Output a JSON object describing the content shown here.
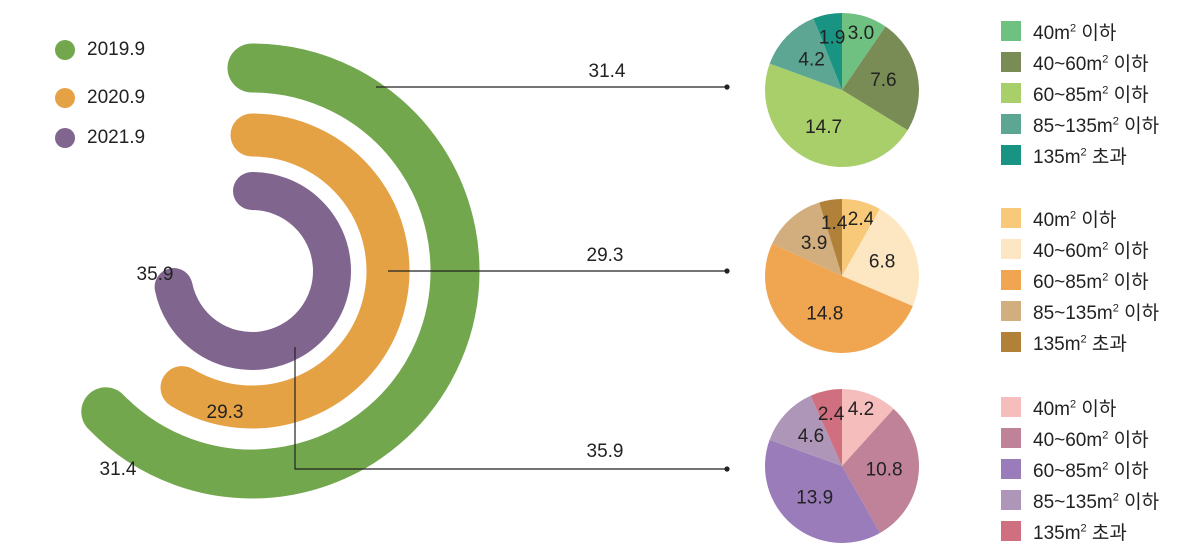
{
  "chart_data": [
    {
      "type": "radial-bar",
      "legend": [
        "2019.9",
        "2020.9",
        "2021.9"
      ],
      "colors": [
        "#72a74e",
        "#e5a245",
        "#80658f"
      ],
      "series": [
        {
          "name": "2019.9",
          "value": 31.4,
          "label": "31.4"
        },
        {
          "name": "2020.9",
          "value": 29.3,
          "label": "29.3"
        },
        {
          "name": "2021.9",
          "value": 35.9,
          "label": "35.9"
        }
      ]
    },
    {
      "type": "pie",
      "total_label": "31.4",
      "categories": [
        "40m² 이하",
        "40~60m² 이하",
        "60~85m² 이하",
        "85~135m² 이하",
        "135m² 초과"
      ],
      "values": [
        3.0,
        7.6,
        14.7,
        4.2,
        1.9
      ],
      "labels": [
        "3.0",
        "7.6",
        "14.7",
        "4.2",
        "1.9"
      ],
      "colors": [
        "#6ec181",
        "#7a8c55",
        "#a9cf6b",
        "#5ea694",
        "#199482"
      ]
    },
    {
      "type": "pie",
      "total_label": "29.3",
      "categories": [
        "40m² 이하",
        "40~60m² 이하",
        "60~85m² 이하",
        "85~135m² 이하",
        "135m² 초과"
      ],
      "values": [
        2.4,
        6.8,
        14.8,
        3.9,
        1.4
      ],
      "labels": [
        "2.4",
        "6.8",
        "14.8",
        "3.9",
        "1.4"
      ],
      "colors": [
        "#f9c97a",
        "#fde7c3",
        "#f0a650",
        "#d2ae7f",
        "#b28139"
      ]
    },
    {
      "type": "pie",
      "total_label": "35.9",
      "categories": [
        "40m² 이하",
        "40~60m² 이하",
        "60~85m² 이하",
        "85~135m² 이하",
        "135m² 초과"
      ],
      "values": [
        4.2,
        10.8,
        13.9,
        4.6,
        2.4
      ],
      "labels": [
        "4.2",
        "10.8",
        "13.9",
        "4.6",
        "2.4"
      ],
      "colors": [
        "#f6bdbd",
        "#c08298",
        "#9b7cba",
        "#ae96b8",
        "#cf6f80"
      ]
    }
  ],
  "pie_legend": {
    "items": [
      {
        "pre": "40m",
        "sup": "2",
        "post": " 이하"
      },
      {
        "pre": "40~60m",
        "sup": "2",
        "post": " 이하"
      },
      {
        "pre": "60~85m",
        "sup": "2",
        "post": " 이하"
      },
      {
        "pre": "85~135m",
        "sup": "2",
        "post": " 이하"
      },
      {
        "pre": "135m",
        "sup": "2",
        "post": " 초과"
      }
    ]
  }
}
